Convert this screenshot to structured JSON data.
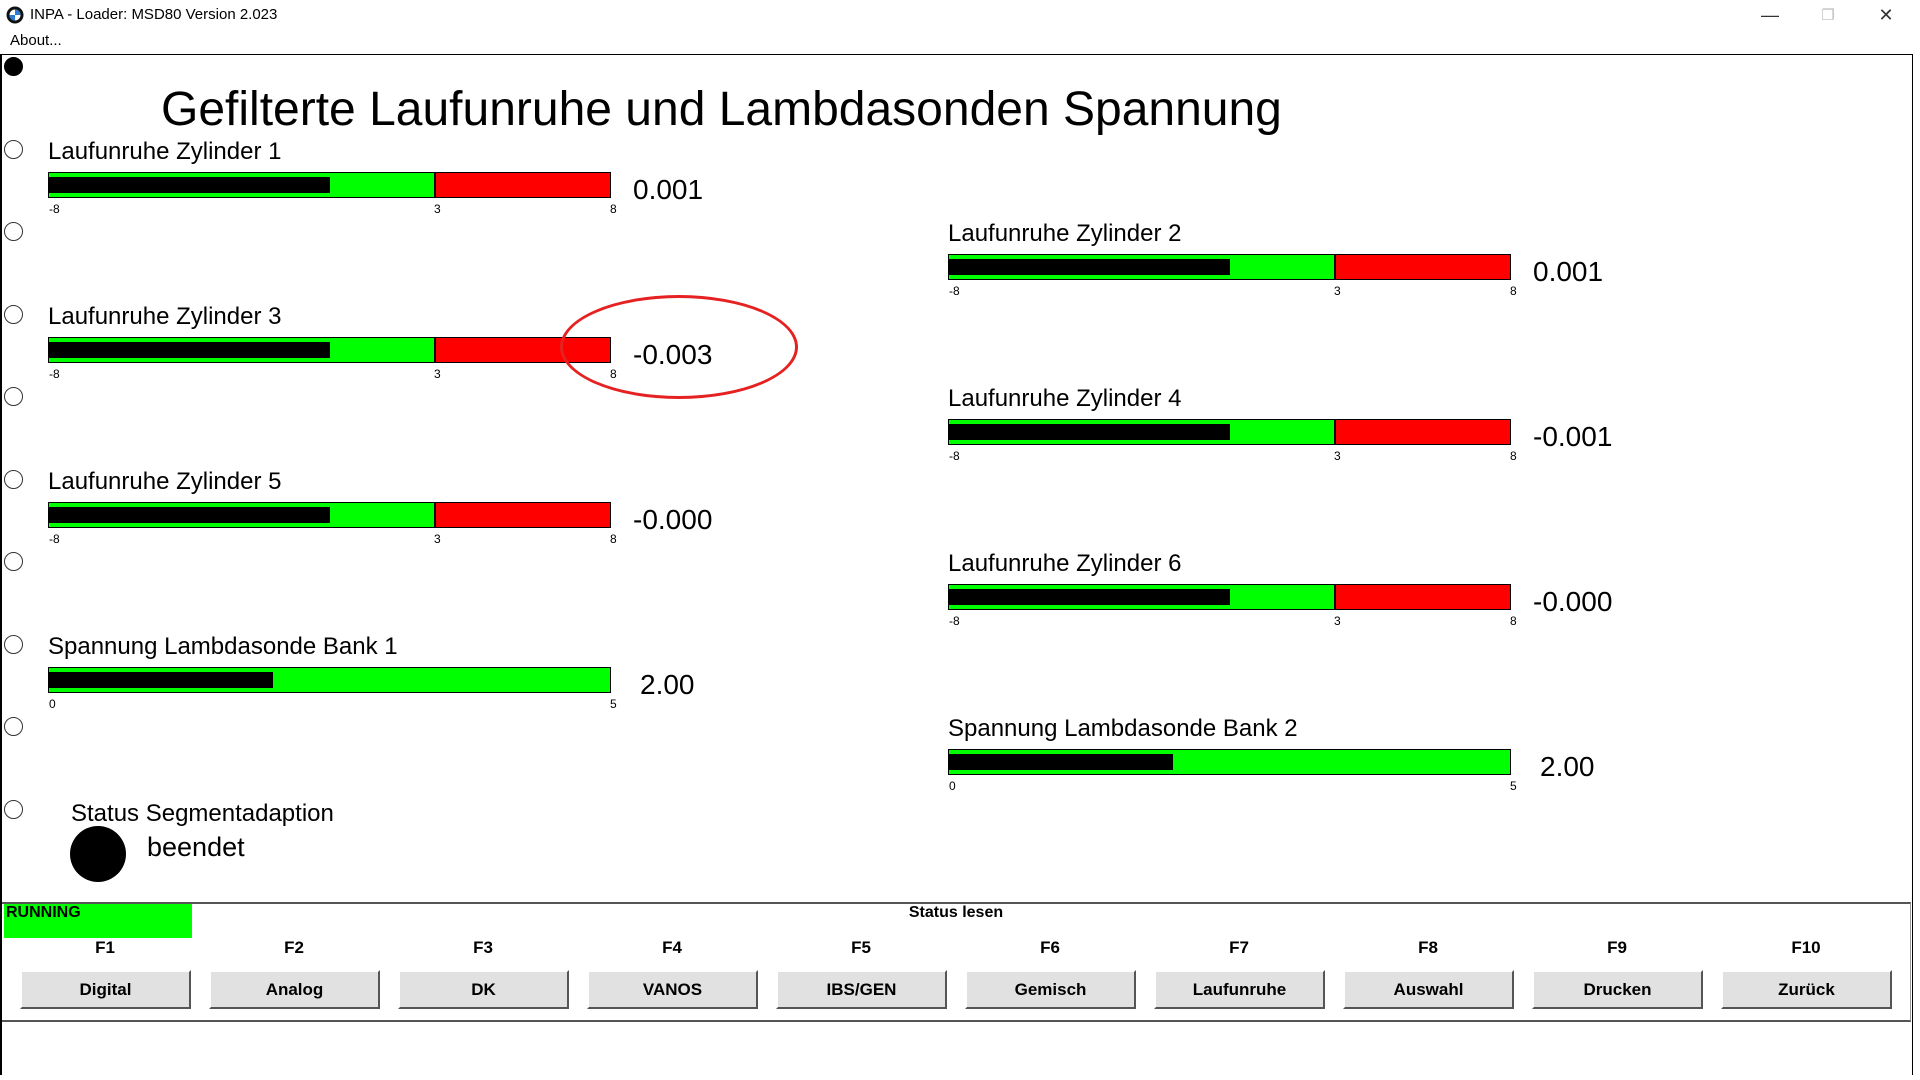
{
  "window": {
    "title": "INPA - Loader:  MSD80 Version 2.023",
    "menu_about": "About...",
    "minimize_glyph": "—",
    "maximize_glyph": "❐",
    "close_glyph": "✕"
  },
  "page_title": "Gefilterte Laufunruhe und Lambdasonden Spannung",
  "meters": [
    {
      "label": "Laufunruhe Zylinder 1",
      "value": "0.001",
      "min_label": "-8",
      "mid_label": "3",
      "max_label": "8",
      "fill_fraction": 0.5
    },
    {
      "label": "Laufunruhe Zylinder 2",
      "value": "0.001",
      "min_label": "-8",
      "mid_label": "3",
      "max_label": "8",
      "fill_fraction": 0.5
    },
    {
      "label": "Laufunruhe Zylinder 3",
      "value": "-0.003",
      "min_label": "-8",
      "mid_label": "3",
      "max_label": "8",
      "fill_fraction": 0.5
    },
    {
      "label": "Laufunruhe Zylinder 4",
      "value": "-0.001",
      "min_label": "-8",
      "mid_label": "3",
      "max_label": "8",
      "fill_fraction": 0.5
    },
    {
      "label": "Laufunruhe Zylinder 5",
      "value": "-0.000",
      "min_label": "-8",
      "mid_label": "3",
      "max_label": "8",
      "fill_fraction": 0.5
    },
    {
      "label": "Laufunruhe Zylinder 6",
      "value": "-0.000",
      "min_label": "-8",
      "mid_label": "3",
      "max_label": "8",
      "fill_fraction": 0.5
    },
    {
      "label": "Spannung Lambdasonde Bank 1",
      "value": "2.00",
      "min_label": "0",
      "max_label": "5",
      "fill_fraction": 0.4
    },
    {
      "label": "Spannung Lambdasonde Bank 2",
      "value": "2.00",
      "min_label": "0",
      "max_label": "5",
      "fill_fraction": 0.4
    }
  ],
  "status_segmentadaption": {
    "label": "Status Segmentadaption",
    "value": "beendet"
  },
  "status_bar": {
    "running": "RUNNING",
    "center_text": "Status lesen"
  },
  "fkeys": [
    {
      "key": "F1",
      "label": "Digital"
    },
    {
      "key": "F2",
      "label": "Analog"
    },
    {
      "key": "F3",
      "label": "DK"
    },
    {
      "key": "F4",
      "label": "VANOS"
    },
    {
      "key": "F5",
      "label": "IBS/GEN"
    },
    {
      "key": "F6",
      "label": "Gemisch"
    },
    {
      "key": "F7",
      "label": "Laufunruhe"
    },
    {
      "key": "F8",
      "label": "Auswahl"
    },
    {
      "key": "F9",
      "label": "Drucken"
    },
    {
      "key": "F10",
      "label": "Zurück"
    }
  ],
  "colors": {
    "ok_green": "#00ff00",
    "warn_red": "#ff0000",
    "annotation_red": "#e52121"
  }
}
